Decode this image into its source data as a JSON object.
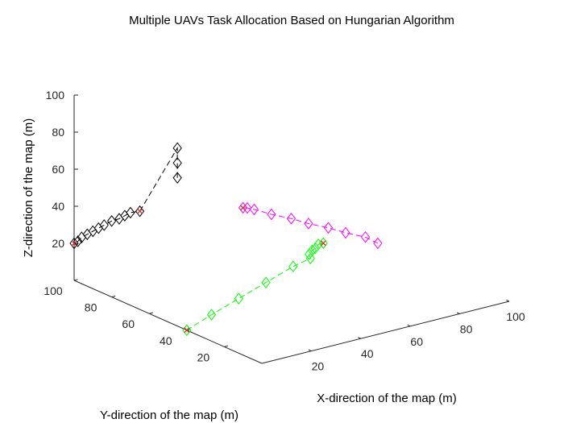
{
  "chart_data": {
    "type": "scatter",
    "projection": "3d",
    "title": "Multiple UAVs Task Allocation Based on Hungarian Algorithm",
    "xlabel": "X-direction of the map (m)",
    "ylabel": "Y-direction of the map (m)",
    "zlabel": "Z-direction of the map (m)",
    "xticks": [
      "20",
      "40",
      "60",
      "80",
      "100"
    ],
    "yticks": [
      "20",
      "40",
      "60",
      "80",
      "100"
    ],
    "zticks": [
      "20",
      "40",
      "60",
      "80",
      "100"
    ],
    "xlim": [
      0,
      100
    ],
    "ylim": [
      0,
      100
    ],
    "zlim": [
      0,
      100
    ],
    "grid": false,
    "series": [
      {
        "color": "#000000",
        "marker": "diamond",
        "points": [
          [
            0,
            45,
            80
          ],
          [
            0,
            45,
            88
          ],
          [
            0,
            45,
            96
          ],
          [
            0,
            65,
            53
          ],
          [
            0,
            70,
            50
          ],
          [
            0,
            73,
            47
          ],
          [
            0,
            76,
            44
          ],
          [
            0,
            80,
            41
          ],
          [
            0,
            84,
            37
          ],
          [
            0,
            87,
            34
          ],
          [
            0,
            90,
            31
          ],
          [
            0,
            93,
            28
          ],
          [
            0,
            96,
            25
          ],
          [
            0,
            98,
            22
          ],
          [
            0,
            100,
            20
          ]
        ],
        "endpoints": [
          [
            0,
            65,
            53
          ],
          [
            0,
            100,
            20
          ]
        ],
        "endpoint_color": "#d62728"
      },
      {
        "color": "#00ff00",
        "marker": "diamond",
        "points": [
          [
            0,
            40,
            0
          ],
          [
            10,
            40,
            5
          ],
          [
            21,
            40,
            10
          ],
          [
            32,
            40,
            15
          ],
          [
            43,
            40,
            20
          ],
          [
            50,
            40,
            22
          ],
          [
            51,
            42,
            23
          ],
          [
            53,
            43,
            24
          ],
          [
            55,
            44,
            24
          ],
          [
            57,
            45,
            25
          ],
          [
            59,
            45,
            25
          ]
        ],
        "endpoints": [
          [
            0,
            40,
            0
          ],
          [
            59,
            45,
            25
          ]
        ],
        "endpoint_color": "#d62728"
      },
      {
        "color": "#ff00ff",
        "marker": "diamond",
        "points": [
          [
            100,
            70,
            0
          ],
          [
            95,
            70,
            5
          ],
          [
            87,
            70,
            10
          ],
          [
            80,
            70,
            15
          ],
          [
            72,
            70,
            20
          ],
          [
            65,
            70,
            25
          ],
          [
            57,
            70,
            30
          ],
          [
            50,
            70,
            35
          ],
          [
            48,
            71,
            36
          ],
          [
            47,
            72,
            36
          ]
        ],
        "endpoints": [
          [
            47,
            72,
            36
          ]
        ],
        "endpoint_color": "#d62728"
      }
    ]
  }
}
